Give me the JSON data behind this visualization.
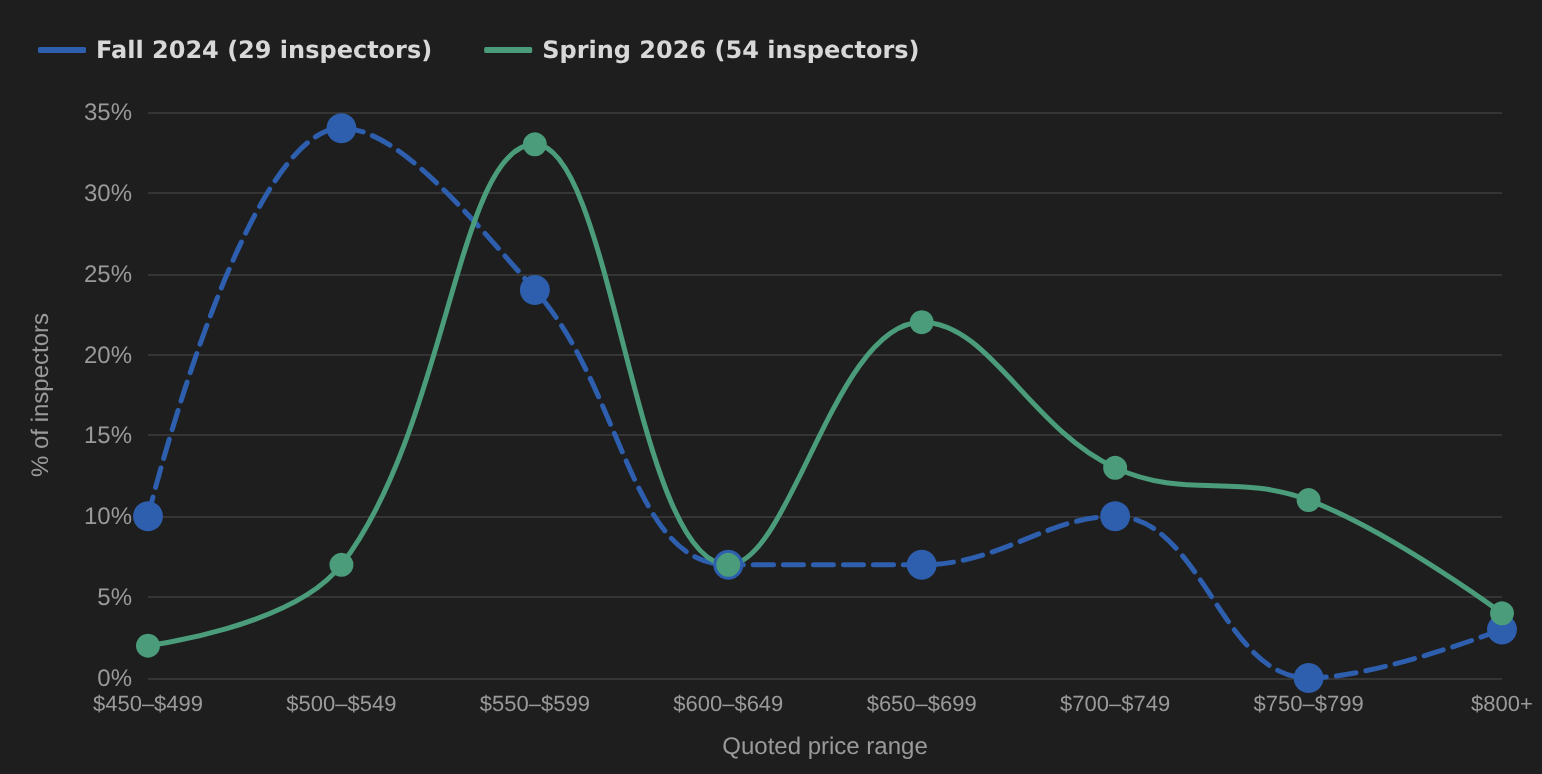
{
  "chart_data": {
    "type": "line",
    "xlabel": "Quoted price range",
    "ylabel": "% of inspectors",
    "categories": [
      "$450–$499",
      "$500–$549",
      "$550–$599",
      "$600–$649",
      "$650–$699",
      "$700–$749",
      "$750–$799",
      "$800+"
    ],
    "series": [
      {
        "name": "Fall 2024 (29 inspectors)",
        "color": "#2e5fae",
        "line_style": "dashed",
        "values": [
          10,
          34,
          24,
          7,
          7,
          10,
          0,
          3
        ]
      },
      {
        "name": "Spring 2026 (54 inspectors)",
        "color": "#4a9c7b",
        "line_style": "solid",
        "values": [
          2,
          7,
          33,
          7,
          22,
          13,
          11,
          4
        ]
      }
    ],
    "ylim": [
      0,
      35
    ],
    "yticks": [
      {
        "value": 0,
        "label": "0%"
      },
      {
        "value": 5,
        "label": "5%"
      },
      {
        "value": 10,
        "label": "10%"
      },
      {
        "value": 15,
        "label": "15%"
      },
      {
        "value": 20,
        "label": "20%"
      },
      {
        "value": 25,
        "label": "25%"
      },
      {
        "value": 30,
        "label": "30%"
      },
      {
        "value": 35,
        "label": "35%"
      }
    ],
    "grid": "y",
    "legend": "top left",
    "marker": "circle"
  }
}
